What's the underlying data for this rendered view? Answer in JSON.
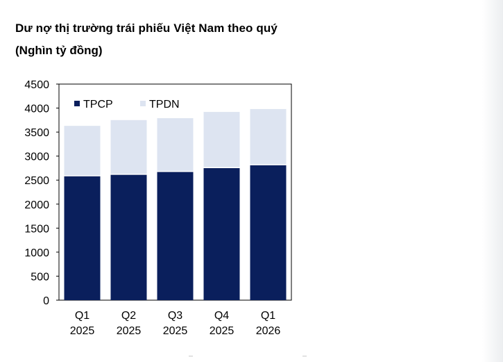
{
  "title": "Dư nợ thị trường trái phiếu Việt Nam theo quý",
  "subtitle": "(Nghìn tỷ đồng)",
  "colors": {
    "TPCP": "#0a1f5c",
    "TPDN": "#dde4f1"
  },
  "chart_data": {
    "type": "bar",
    "stacked": true,
    "categories": [
      [
        "Q1",
        "2025"
      ],
      [
        "Q2",
        "2025"
      ],
      [
        "Q3",
        "2025"
      ],
      [
        "Q4",
        "2025"
      ],
      [
        "Q1",
        "2026"
      ]
    ],
    "series": [
      {
        "name": "TPCP",
        "values": [
          2590,
          2620,
          2680,
          2760,
          2820
        ]
      },
      {
        "name": "TPDN",
        "values": [
          1040,
          1130,
          1110,
          1160,
          1160
        ]
      }
    ],
    "ylim": [
      0,
      4500
    ],
    "yticks": [
      0,
      500,
      1000,
      1500,
      2000,
      2500,
      3000,
      3500,
      4000,
      4500
    ],
    "legend_position": "top-left",
    "grid": false
  }
}
